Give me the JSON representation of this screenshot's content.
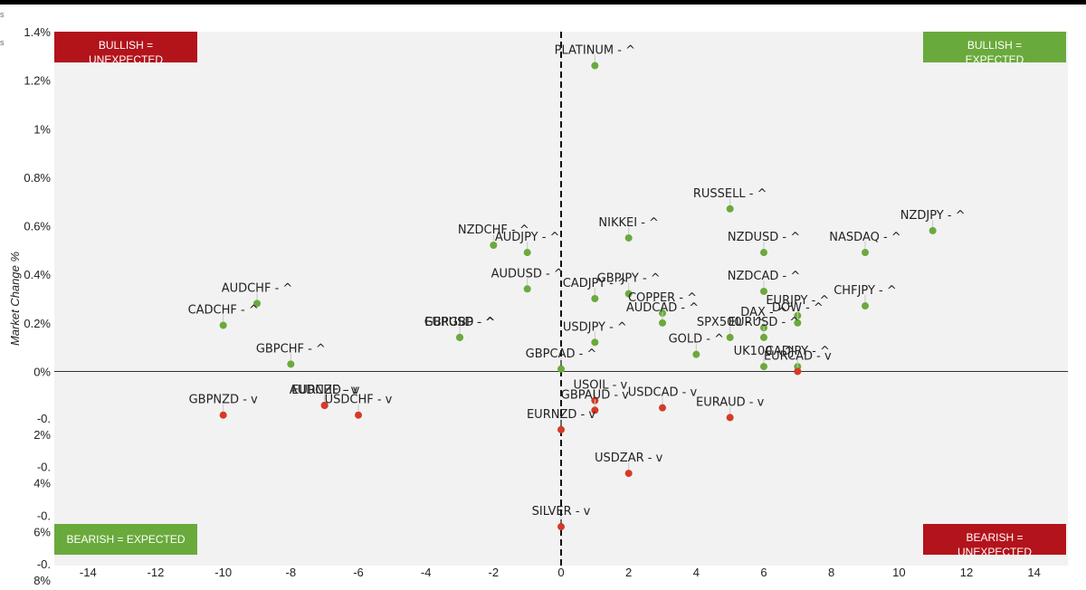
{
  "chart_data": {
    "type": "scatter",
    "ylabel": "Market Change %",
    "xlim": [
      -15,
      15
    ],
    "ylim": [
      -0.8,
      1.4
    ],
    "colors": {
      "up": "#6aaa3c",
      "down": "#d63a26",
      "expected": "#6aaa3c",
      "unexpected": "#b3131b"
    },
    "x_ticks": [
      {
        "v": -14,
        "label": "-14"
      },
      {
        "v": -12,
        "label": "-12"
      },
      {
        "v": -10,
        "label": "-10"
      },
      {
        "v": -8,
        "label": "-8"
      },
      {
        "v": -6,
        "label": "-6"
      },
      {
        "v": -4,
        "label": "-4"
      },
      {
        "v": -2,
        "label": "-2"
      },
      {
        "v": 0,
        "label": "0"
      },
      {
        "v": 2,
        "label": "2"
      },
      {
        "v": 4,
        "label": "4"
      },
      {
        "v": 6,
        "label": "6"
      },
      {
        "v": 8,
        "label": "8"
      },
      {
        "v": 10,
        "label": "10"
      },
      {
        "v": 12,
        "label": "12"
      },
      {
        "v": 14,
        "label": "14"
      }
    ],
    "y_ticks": [
      {
        "v": 1.4,
        "lines": [
          "1.4%"
        ]
      },
      {
        "v": 1.2,
        "lines": [
          "1.2%"
        ]
      },
      {
        "v": 1.0,
        "lines": [
          "1%"
        ]
      },
      {
        "v": 0.8,
        "lines": [
          "0.8%"
        ]
      },
      {
        "v": 0.6,
        "lines": [
          "0.6%"
        ]
      },
      {
        "v": 0.4,
        "lines": [
          "0.4%"
        ]
      },
      {
        "v": 0.2,
        "lines": [
          "0.2%"
        ]
      },
      {
        "v": 0.0,
        "lines": [
          "0%"
        ]
      },
      {
        "v": -0.2,
        "lines": [
          "-0.",
          "2%"
        ]
      },
      {
        "v": -0.4,
        "lines": [
          "-0.",
          "4%"
        ]
      },
      {
        "v": -0.6,
        "lines": [
          "-0.",
          "6%"
        ]
      },
      {
        "v": -0.8,
        "lines": [
          "-0.",
          "8%"
        ]
      }
    ],
    "quadrants": [
      {
        "id": "top-left",
        "lines": [
          "BULLISH =",
          "UNEXPECTED"
        ],
        "kind": "unexpected"
      },
      {
        "id": "top-right",
        "lines": [
          "BULLISH =",
          "EXPECTED"
        ],
        "kind": "expected"
      },
      {
        "id": "bottom-left",
        "lines": [
          "BEARISH = EXPECTED"
        ],
        "kind": "expected"
      },
      {
        "id": "bottom-right",
        "lines": [
          "BEARISH =",
          "UNEXPECTED"
        ],
        "kind": "unexpected"
      }
    ],
    "edge_marks": [
      "s",
      "s"
    ],
    "points": [
      {
        "label": "PLATINUM - ^",
        "x": 1,
        "y": 1.26,
        "dir": "up"
      },
      {
        "label": "RUSSELL - ^",
        "x": 5,
        "y": 0.67,
        "dir": "up"
      },
      {
        "label": "NZDJPY - ^",
        "x": 11,
        "y": 0.58,
        "dir": "up"
      },
      {
        "label": "NIKKEI - ^",
        "x": 2,
        "y": 0.55,
        "dir": "up"
      },
      {
        "label": "NZDCHF - ^",
        "x": -2,
        "y": 0.52,
        "dir": "up"
      },
      {
        "label": "AUDJPY - ^",
        "x": -1,
        "y": 0.49,
        "dir": "up"
      },
      {
        "label": "NZDUSD - ^",
        "x": 6,
        "y": 0.49,
        "dir": "up"
      },
      {
        "label": "NASDAQ - ^",
        "x": 9,
        "y": 0.49,
        "dir": "up"
      },
      {
        "label": "AUDUSD - ^",
        "x": -1,
        "y": 0.34,
        "dir": "up"
      },
      {
        "label": "NZDCAD - ^",
        "x": 6,
        "y": 0.33,
        "dir": "up"
      },
      {
        "label": "GBPJPY - ^",
        "x": 2,
        "y": 0.32,
        "dir": "up"
      },
      {
        "label": "CADJPY - ^",
        "x": 1,
        "y": 0.3,
        "dir": "up"
      },
      {
        "label": "AUDCHF - ^",
        "x": -9,
        "y": 0.28,
        "dir": "up"
      },
      {
        "label": "CHFJPY - ^",
        "x": 9,
        "y": 0.27,
        "dir": "up"
      },
      {
        "label": "COPPER - ^",
        "x": 3,
        "y": 0.24,
        "dir": "up"
      },
      {
        "label": "EURJPY - ^",
        "x": 7,
        "y": 0.23,
        "dir": "up"
      },
      {
        "label": "AUDCAD - ^",
        "x": 3,
        "y": 0.2,
        "dir": "up"
      },
      {
        "label": "DOW - ^",
        "x": 7,
        "y": 0.2,
        "dir": "up"
      },
      {
        "label": "CADCHF - ^",
        "x": -10,
        "y": 0.19,
        "dir": "up"
      },
      {
        "label": "DAX - ^",
        "x": 6,
        "y": 0.18,
        "dir": "up"
      },
      {
        "label": "SPX500 - ^",
        "x": 5,
        "y": 0.14,
        "dir": "up"
      },
      {
        "label": "EURUSD - ^",
        "x": 6,
        "y": 0.14,
        "dir": "up"
      },
      {
        "label": "GBPUSD - ^",
        "x": -3,
        "y": 0.14,
        "dir": "up"
      },
      {
        "label": "EURGBP - ^",
        "x": -3,
        "y": 0.14,
        "dir": "up"
      },
      {
        "label": "USDJPY - ^",
        "x": 1,
        "y": 0.12,
        "dir": "up"
      },
      {
        "label": "GOLD - ^",
        "x": 4,
        "y": 0.07,
        "dir": "up"
      },
      {
        "label": "GBPCHF - ^",
        "x": -8,
        "y": 0.03,
        "dir": "up"
      },
      {
        "label": "UK100 - ^",
        "x": 6,
        "y": 0.02,
        "dir": "up"
      },
      {
        "label": "GBPCAD - ^",
        "x": 0,
        "y": 0.01,
        "dir": "up"
      },
      {
        "label": "CADJPY - ^",
        "x": 7,
        "y": 0.02,
        "dir": "up"
      },
      {
        "label": "EURCAD - v",
        "x": 7,
        "y": 0.0,
        "dir": "down"
      },
      {
        "label": "USOIL - v",
        "x": 1,
        "y": -0.12,
        "dir": "down",
        "label_dx": 6
      },
      {
        "label": "EURCHF - v",
        "x": -7,
        "y": -0.14,
        "dir": "down"
      },
      {
        "label": "AUDNZD - v",
        "x": -7,
        "y": -0.14,
        "dir": "down"
      },
      {
        "label": "USDCHF - v",
        "x": -6,
        "y": -0.18,
        "dir": "down"
      },
      {
        "label": "GBPAUD - v",
        "x": 1,
        "y": -0.16,
        "dir": "down"
      },
      {
        "label": "USDCAD - v",
        "x": 3,
        "y": -0.15,
        "dir": "down"
      },
      {
        "label": "EURAUD - v",
        "x": 5,
        "y": -0.19,
        "dir": "down"
      },
      {
        "label": "GBPNZD - v",
        "x": -10,
        "y": -0.18,
        "dir": "down"
      },
      {
        "label": "EURNZD - v",
        "x": 0,
        "y": -0.24,
        "dir": "down"
      },
      {
        "label": "USDZAR - v",
        "x": 2,
        "y": -0.42,
        "dir": "down"
      },
      {
        "label": "SILVER - v",
        "x": 0,
        "y": -0.64,
        "dir": "down"
      }
    ]
  }
}
